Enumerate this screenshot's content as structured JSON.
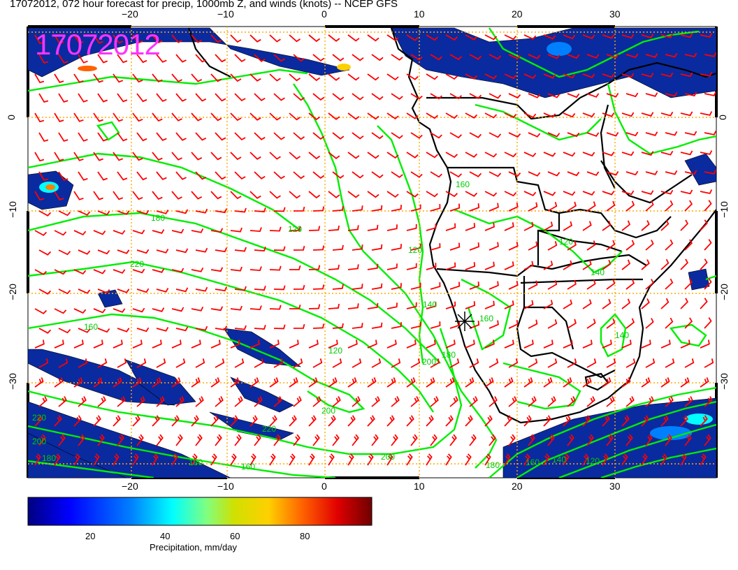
{
  "title": "17072012, 072 hour forecast for precip, 1000mb Z, and winds (knots) -- NCEP GFS",
  "date_stamp": "17072012",
  "map": {
    "lon_range": [
      -30,
      40
    ],
    "lat_range": [
      -40,
      10
    ],
    "lon_ticks": [
      {
        "value": -20,
        "label": "−20"
      },
      {
        "value": -10,
        "label": "−10"
      },
      {
        "value": 0,
        "label": "0"
      },
      {
        "value": 10,
        "label": "10"
      },
      {
        "value": 20,
        "label": "20"
      },
      {
        "value": 30,
        "label": "30"
      }
    ],
    "lat_ticks": [
      {
        "value": 0,
        "label": "0"
      },
      {
        "value": -10,
        "label": "−10"
      },
      {
        "value": -20,
        "label": "−20"
      },
      {
        "value": -30,
        "label": "−30"
      }
    ],
    "contour_labels": [
      "180",
      "220",
      "160",
      "200",
      "140",
      "120"
    ]
  },
  "colorbar": {
    "label": "Precipitation, mm/day",
    "ticks": [
      {
        "value": 20,
        "label": "20"
      },
      {
        "value": 40,
        "label": "40"
      },
      {
        "value": 60,
        "label": "60"
      },
      {
        "value": 80,
        "label": "80"
      }
    ],
    "range": [
      0,
      100
    ],
    "colors": [
      "#000080",
      "#0000ff",
      "#0080ff",
      "#00ffff",
      "#80ff80",
      "#c0ff00",
      "#ffd000",
      "#ff8000",
      "#ff0000",
      "#800000"
    ]
  },
  "colors": {
    "wind_barb": "#ff0000",
    "contour": "#00ee00",
    "coast": "#000000",
    "grid": "#ffaa00",
    "precip": "#0a2aa0"
  }
}
